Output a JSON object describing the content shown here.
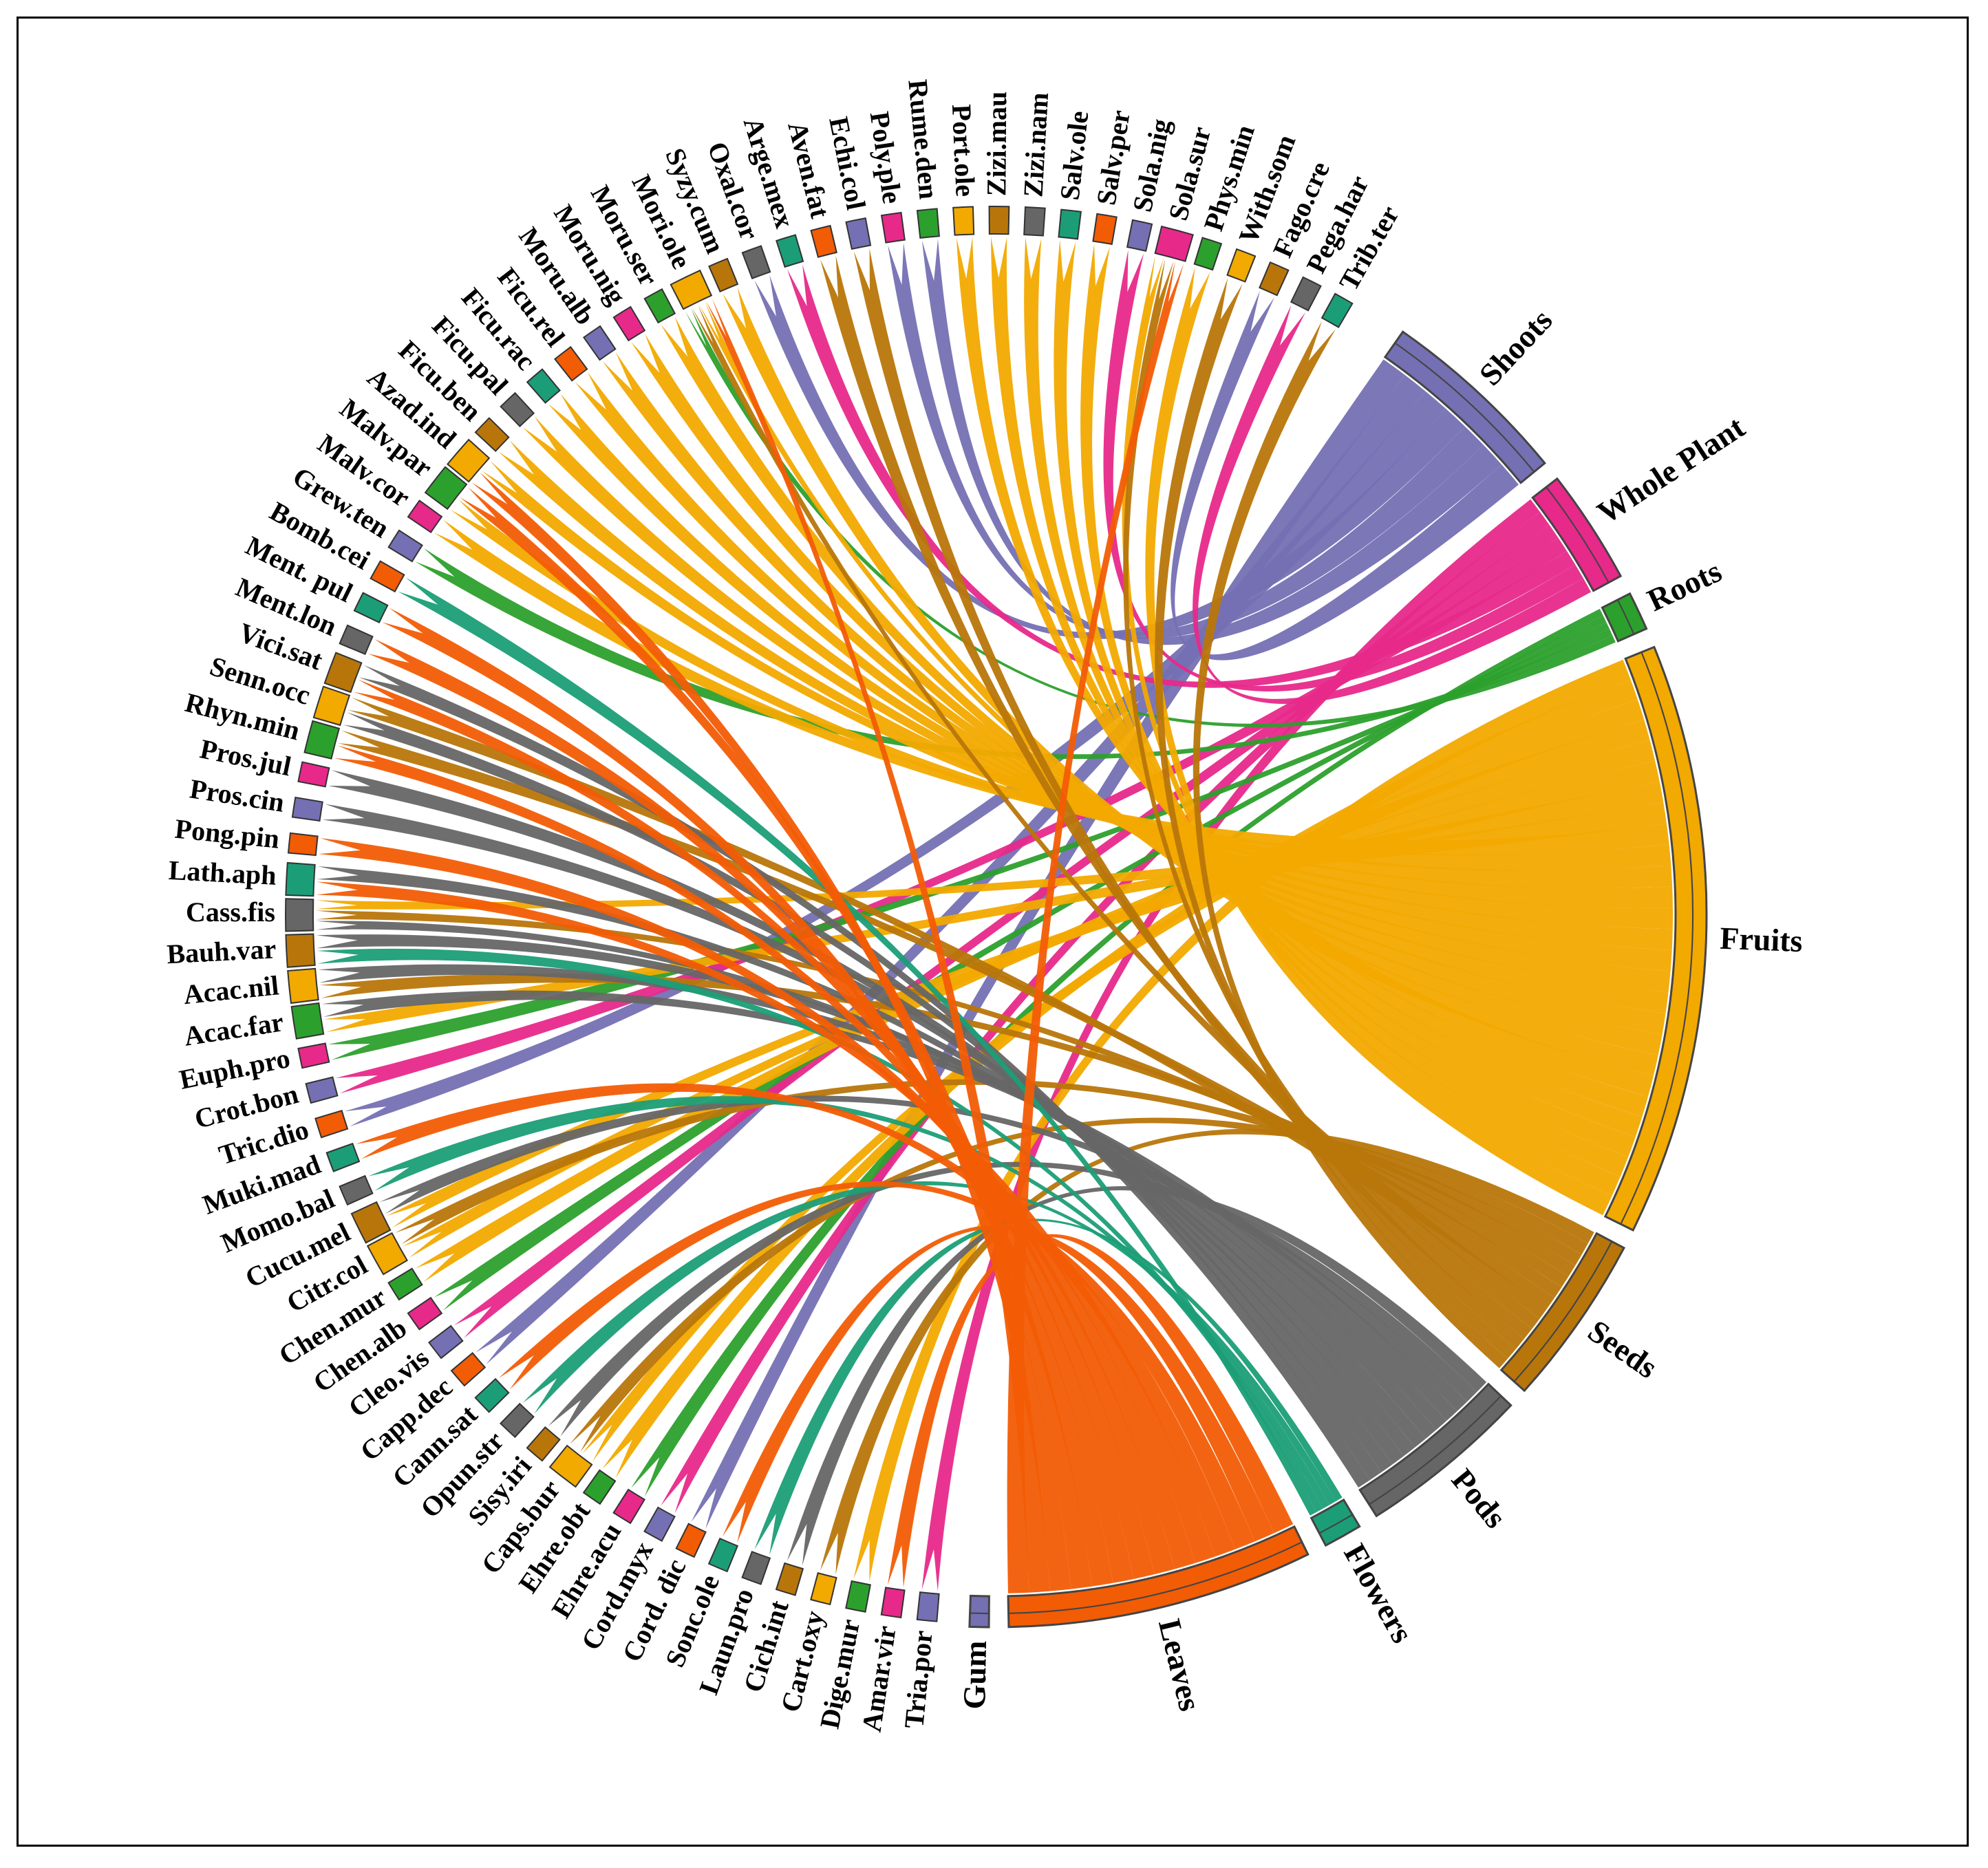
{
  "chart_data": {
    "type": "chord",
    "title": "",
    "colors": {
      "Shoots": "#7570b3",
      "Whole Plant": "#e7298a",
      "Roots": "#2ca02c",
      "Fruits": "#f2a900",
      "Seeds": "#b8760a",
      "Pods": "#666666",
      "Flowers": "#1b9e77",
      "Leaves": "#f25c05",
      "Gum": "#7570b3"
    },
    "parts": [
      {
        "name": "Shoots",
        "weight": 10
      },
      {
        "name": "Whole Plant",
        "weight": 6
      },
      {
        "name": "Roots",
        "weight": 2
      },
      {
        "name": "Fruits",
        "weight": 31
      },
      {
        "name": "Seeds",
        "weight": 9
      },
      {
        "name": "Pods",
        "weight": 9
      },
      {
        "name": "Flowers",
        "weight": 2
      },
      {
        "name": "Leaves",
        "weight": 16
      },
      {
        "name": "Gum",
        "weight": 1
      }
    ],
    "species": [
      {
        "name": "Tria.por",
        "parts": [
          "Whole Plant"
        ]
      },
      {
        "name": "Amar.vir",
        "parts": [
          "Leaves"
        ]
      },
      {
        "name": "Dige.mur",
        "parts": [
          "Fruits"
        ]
      },
      {
        "name": "Cart.oxy",
        "parts": [
          "Seeds"
        ]
      },
      {
        "name": "Cich.int",
        "parts": [
          "Pods"
        ]
      },
      {
        "name": "Laun.pro",
        "parts": [
          "Flowers"
        ]
      },
      {
        "name": "Sonc.ole",
        "parts": [
          "Leaves"
        ]
      },
      {
        "name": "Cord. dic",
        "parts": [
          "Shoots"
        ]
      },
      {
        "name": "Cord.myx",
        "parts": [
          "Whole Plant"
        ]
      },
      {
        "name": "Ehre.acu",
        "parts": [
          "Roots"
        ]
      },
      {
        "name": "Ehre.obt",
        "parts": [
          "Fruits"
        ]
      },
      {
        "name": "Caps.bur",
        "parts": [
          "Fruits",
          "Seeds"
        ]
      },
      {
        "name": "Sisy.iri",
        "parts": [
          "Pods"
        ]
      },
      {
        "name": "Opun.str",
        "parts": [
          "Flowers"
        ]
      },
      {
        "name": "Cann.sat",
        "parts": [
          "Leaves"
        ]
      },
      {
        "name": "Capp.dec",
        "parts": [
          "Shoots"
        ]
      },
      {
        "name": "Cleo.vis",
        "parts": [
          "Whole Plant"
        ]
      },
      {
        "name": "Chen.alb",
        "parts": [
          "Roots"
        ]
      },
      {
        "name": "Chen.mur",
        "parts": [
          "Fruits"
        ]
      },
      {
        "name": "Citr.col",
        "parts": [
          "Fruits",
          "Seeds"
        ]
      },
      {
        "name": "Cucu.mel",
        "parts": [
          "Fruits",
          "Pods"
        ]
      },
      {
        "name": "Momo.bal",
        "parts": [
          "Flowers"
        ]
      },
      {
        "name": "Muki.mad",
        "parts": [
          "Leaves"
        ]
      },
      {
        "name": "Tric.dio",
        "parts": [
          "Shoots"
        ]
      },
      {
        "name": "Crot.bon",
        "parts": [
          "Whole Plant"
        ]
      },
      {
        "name": "Euph.pro",
        "parts": [
          "Roots"
        ]
      },
      {
        "name": "Acac.far",
        "parts": [
          "Fruits",
          "Pods"
        ]
      },
      {
        "name": "Acac.nil",
        "parts": [
          "Seeds",
          "Pods"
        ]
      },
      {
        "name": "Bauh.var",
        "parts": [
          "Flowers",
          "Pods"
        ]
      },
      {
        "name": "Cass.fis",
        "parts": [
          "Pods",
          "Seeds",
          "Fruits"
        ]
      },
      {
        "name": "Lath.aph",
        "parts": [
          "Leaves",
          "Pods"
        ]
      },
      {
        "name": "Pong.pin",
        "parts": [
          "Leaves"
        ]
      },
      {
        "name": "Pros.cin",
        "parts": [
          "Pods"
        ]
      },
      {
        "name": "Pros.jul",
        "parts": [
          "Pods"
        ]
      },
      {
        "name": "Rhyn.min",
        "parts": [
          "Leaves",
          "Seeds"
        ]
      },
      {
        "name": "Senn.occ",
        "parts": [
          "Pods",
          "Seeds"
        ]
      },
      {
        "name": "Vici.sat",
        "parts": [
          "Leaves",
          "Pods"
        ]
      },
      {
        "name": "Ment.lon",
        "parts": [
          "Leaves"
        ]
      },
      {
        "name": "Ment. pul",
        "parts": [
          "Leaves"
        ]
      },
      {
        "name": "Bomb.cei",
        "parts": [
          "Flowers"
        ]
      },
      {
        "name": "Grew.ten",
        "parts": [
          "Roots"
        ]
      },
      {
        "name": "Malv.cor",
        "parts": [
          "Fruits"
        ]
      },
      {
        "name": "Malv.par",
        "parts": [
          "Fruits",
          "Leaves"
        ]
      },
      {
        "name": "Azad.ind",
        "parts": [
          "Leaves",
          "Fruits"
        ]
      },
      {
        "name": "Ficu.ben",
        "parts": [
          "Fruits"
        ]
      },
      {
        "name": "Ficu.pal",
        "parts": [
          "Fruits"
        ]
      },
      {
        "name": "Ficu.rac",
        "parts": [
          "Fruits"
        ]
      },
      {
        "name": "Ficu.rel",
        "parts": [
          "Fruits"
        ]
      },
      {
        "name": "Moru.alb",
        "parts": [
          "Fruits"
        ]
      },
      {
        "name": "Moru.nig",
        "parts": [
          "Fruits"
        ]
      },
      {
        "name": "Moru.ser",
        "parts": [
          "Fruits"
        ]
      },
      {
        "name": "Mori.ole",
        "parts": [
          "Roots",
          "Seeds",
          "Fruits",
          "Leaves"
        ]
      },
      {
        "name": "Syzy.cum",
        "parts": [
          "Fruits"
        ]
      },
      {
        "name": "Oxal.cor",
        "parts": [
          "Shoots"
        ]
      },
      {
        "name": "Arge.mex",
        "parts": [
          "Whole Plant"
        ]
      },
      {
        "name": "Aven.fat",
        "parts": [
          "Seeds"
        ]
      },
      {
        "name": "Echi.col",
        "parts": [
          "Seeds"
        ]
      },
      {
        "name": "Poly.ple",
        "parts": [
          "Shoots"
        ]
      },
      {
        "name": "Rume.den",
        "parts": [
          "Shoots"
        ]
      },
      {
        "name": "Port.ole",
        "parts": [
          "Fruits"
        ]
      },
      {
        "name": "Zizi.mau",
        "parts": [
          "Fruits"
        ]
      },
      {
        "name": "Zizi.nam",
        "parts": [
          "Fruits"
        ]
      },
      {
        "name": "Salv.ole",
        "parts": [
          "Fruits"
        ]
      },
      {
        "name": "Salv.per",
        "parts": [
          "Fruits"
        ]
      },
      {
        "name": "Sola.nig",
        "parts": [
          "Whole Plant"
        ]
      },
      {
        "name": "Sola.sur",
        "parts": [
          "Fruits",
          "Seeds",
          "Leaves"
        ]
      },
      {
        "name": "Phys.min",
        "parts": [
          "Fruits"
        ]
      },
      {
        "name": "With.som",
        "parts": [
          "Seeds"
        ]
      },
      {
        "name": "Fago.cre",
        "parts": [
          "Shoots"
        ]
      },
      {
        "name": "Pega.har",
        "parts": [
          "Whole Plant"
        ]
      },
      {
        "name": "Trib.ter",
        "parts": [
          "Seeds"
        ]
      }
    ]
  }
}
